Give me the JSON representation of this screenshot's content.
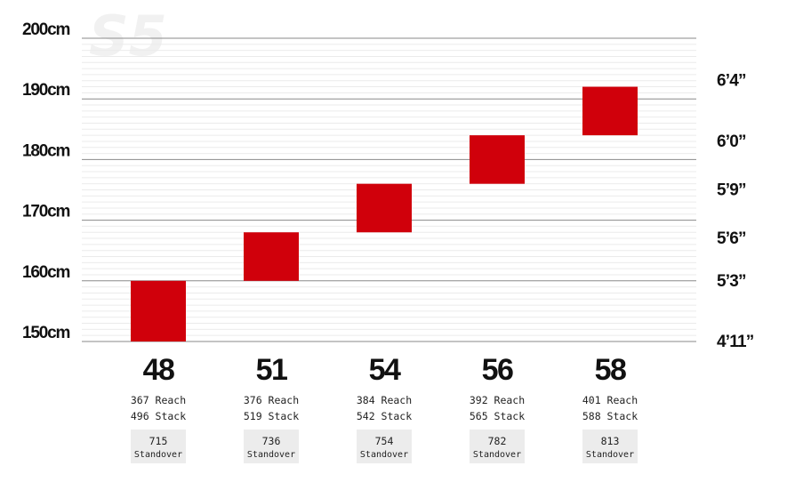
{
  "watermark": "S5",
  "chart_data": {
    "type": "bar",
    "subtype": "floating-range",
    "y_unit": "cm",
    "ylim": [
      150,
      200
    ],
    "y_ticks_left": [
      {
        "value": 200,
        "label": "200cm"
      },
      {
        "value": 190,
        "label": "190cm"
      },
      {
        "value": 180,
        "label": "180cm"
      },
      {
        "value": 170,
        "label": "170cm"
      },
      {
        "value": 160,
        "label": "160cm"
      },
      {
        "value": 150,
        "label": "150cm"
      }
    ],
    "y_ticks_right": [
      {
        "value": 193,
        "label": "6’4”"
      },
      {
        "value": 183,
        "label": "6’0”"
      },
      {
        "value": 175,
        "label": "5’9”"
      },
      {
        "value": 167,
        "label": "5’6”"
      },
      {
        "value": 160,
        "label": "5’3”"
      },
      {
        "value": 150,
        "label": "4’11”"
      }
    ],
    "minor_grid_step": 1,
    "bar_color": "#d0000b",
    "sizes": [
      {
        "size": "48",
        "low": 150,
        "high": 160,
        "reach": "367 Reach",
        "stack": "496 Stack",
        "standover": "715",
        "standover_label": "Standover"
      },
      {
        "size": "51",
        "low": 160,
        "high": 168,
        "reach": "376 Reach",
        "stack": "519 Stack",
        "standover": "736",
        "standover_label": "Standover"
      },
      {
        "size": "54",
        "low": 168,
        "high": 176,
        "reach": "384 Reach",
        "stack": "542 Stack",
        "standover": "754",
        "standover_label": "Standover"
      },
      {
        "size": "56",
        "low": 176,
        "high": 184,
        "reach": "392 Reach",
        "stack": "565 Stack",
        "standover": "782",
        "standover_label": "Standover"
      },
      {
        "size": "58",
        "low": 184,
        "high": 192,
        "reach": "401 Reach",
        "stack": "588 Stack",
        "standover": "813",
        "standover_label": "Standover"
      }
    ]
  }
}
